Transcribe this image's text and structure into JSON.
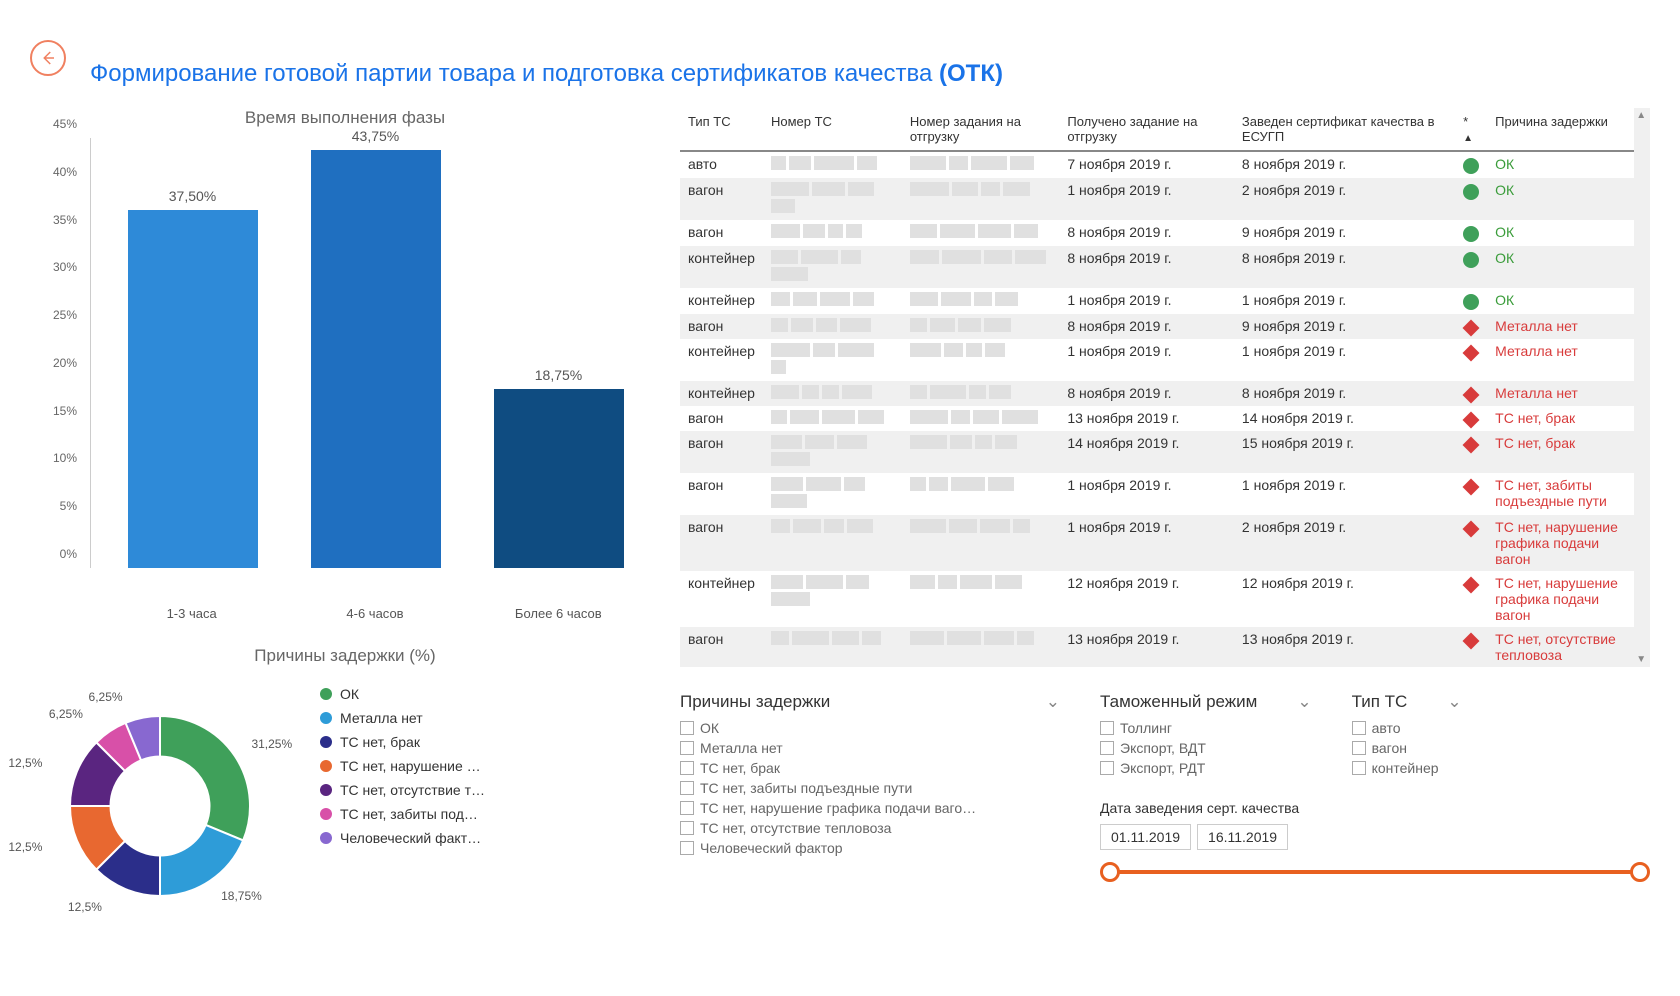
{
  "page_title_prefix": "Формирование готовой партии товара и подготовка сертификатов качества ",
  "page_title_bold": "(ОТК)",
  "bar_chart": {
    "title": "Время выполнения фазы",
    "type": "bar",
    "categories": [
      "1-3 часа",
      "4-6 часов",
      "Более 6 часов"
    ],
    "values": [
      37.5,
      43.75,
      18.75
    ],
    "value_labels": [
      "37,50%",
      "43,75%",
      "18,75%"
    ],
    "bar_colors": [
      "#2e8ad8",
      "#1f6fc0",
      "#0f4c81"
    ],
    "ylim": [
      0,
      45
    ],
    "ytick_step": 5,
    "y_ticks": [
      "0%",
      "5%",
      "10%",
      "15%",
      "20%",
      "25%",
      "30%",
      "35%",
      "40%",
      "45%"
    ],
    "title_fontsize": 17,
    "label_fontsize": 13,
    "background_color": "#ffffff"
  },
  "donut_chart": {
    "title": "Причины задержки (%)",
    "type": "pie",
    "inner_radius_ratio": 0.55,
    "slices": [
      {
        "label": "ОК",
        "value": 31.25,
        "pct_label": "31,25%",
        "color": "#3fa05a"
      },
      {
        "label": "Металла нет",
        "value": 18.75,
        "pct_label": "18,75%",
        "color": "#2e9cd8"
      },
      {
        "label": "ТС нет, брак",
        "value": 12.5,
        "pct_label": "12,5%",
        "color": "#2b2e8a"
      },
      {
        "label": "ТС нет, нарушение …",
        "value": 12.5,
        "pct_label": "12,5%",
        "color": "#e86830"
      },
      {
        "label": "ТС нет, отсутствие т…",
        "value": 12.5,
        "pct_label": "12,5%",
        "color": "#5a2580"
      },
      {
        "label": "ТС нет, забиты под…",
        "value": 6.25,
        "pct_label": "6,25%",
        "color": "#d850a8"
      },
      {
        "label": "Человеческий факт…",
        "value": 6.25,
        "pct_label": "6,25%",
        "color": "#8868d0"
      }
    ]
  },
  "table": {
    "columns": [
      "Тип ТС",
      "Номер ТС",
      "Номер задания на отгрузку",
      "Получено задание на отгрузку",
      "Заведен сертификат качества в ЕСУГП",
      "*",
      "Причина задержки"
    ],
    "rows": [
      {
        "type": "авто",
        "received": "7 ноября 2019 г.",
        "cert": "8 ноября 2019 г.",
        "status": "ok",
        "reason": "ОК"
      },
      {
        "type": "вагон",
        "received": "1 ноября 2019 г.",
        "cert": "2 ноября 2019 г.",
        "status": "ok",
        "reason": "ОК"
      },
      {
        "type": "вагон",
        "received": "8 ноября 2019 г.",
        "cert": "9 ноября 2019 г.",
        "status": "ok",
        "reason": "ОК"
      },
      {
        "type": "контейнер",
        "received": "8 ноября 2019 г.",
        "cert": "8 ноября 2019 г.",
        "status": "ok",
        "reason": "ОК"
      },
      {
        "type": "контейнер",
        "received": "1 ноября 2019 г.",
        "cert": "1 ноября 2019 г.",
        "status": "ok",
        "reason": "ОК"
      },
      {
        "type": "вагон",
        "received": "8 ноября 2019 г.",
        "cert": "9 ноября 2019 г.",
        "status": "bad",
        "reason": "Металла нет"
      },
      {
        "type": "контейнер",
        "received": "1 ноября 2019 г.",
        "cert": "1 ноября 2019 г.",
        "status": "bad",
        "reason": "Металла нет"
      },
      {
        "type": "контейнер",
        "received": "8 ноября 2019 г.",
        "cert": "8 ноября 2019 г.",
        "status": "bad",
        "reason": "Металла нет"
      },
      {
        "type": "вагон",
        "received": "13 ноября 2019 г.",
        "cert": "14 ноября 2019 г.",
        "status": "bad",
        "reason": "ТС нет, брак"
      },
      {
        "type": "вагон",
        "received": "14 ноября 2019 г.",
        "cert": "15 ноября 2019 г.",
        "status": "bad",
        "reason": "ТС нет, брак"
      },
      {
        "type": "вагон",
        "received": "1 ноября 2019 г.",
        "cert": "1 ноября 2019 г.",
        "status": "bad",
        "reason": "ТС нет, забиты подъездные пути"
      },
      {
        "type": "вагон",
        "received": "1 ноября 2019 г.",
        "cert": "2 ноября 2019 г.",
        "status": "bad",
        "reason": "ТС нет, нарушение графика подачи вагон"
      },
      {
        "type": "контейнер",
        "received": "12 ноября 2019 г.",
        "cert": "12 ноября 2019 г.",
        "status": "bad",
        "reason": "ТС нет, нарушение графика подачи вагон"
      },
      {
        "type": "вагон",
        "received": "13 ноября 2019 г.",
        "cert": "13 ноября 2019 г.",
        "status": "bad",
        "reason": "ТС нет, отсутствие тепловоза"
      }
    ],
    "status_ok_color": "#3fa05a",
    "status_bad_color": "#d83b3b"
  },
  "filters": {
    "reasons": {
      "title": "Причины задержки",
      "items": [
        "ОК",
        "Металла нет",
        "ТС нет, брак",
        "ТС нет, забиты подъездные пути",
        "ТС нет, нарушение графика подачи ваго…",
        "ТС нет, отсутствие тепловоза",
        "Человеческий фактор"
      ]
    },
    "customs": {
      "title": "Таможенный режим",
      "items": [
        "Толлинг",
        "Экспорт, ВДТ",
        "Экспорт, РДТ"
      ]
    },
    "ts_type": {
      "title": "Тип ТС",
      "items": [
        "авто",
        "вагон",
        "контейнер"
      ]
    },
    "date_range": {
      "label": "Дата заведения серт. качества",
      "from": "01.11.2019",
      "to": "16.11.2019",
      "slider_color": "#e86020"
    }
  }
}
